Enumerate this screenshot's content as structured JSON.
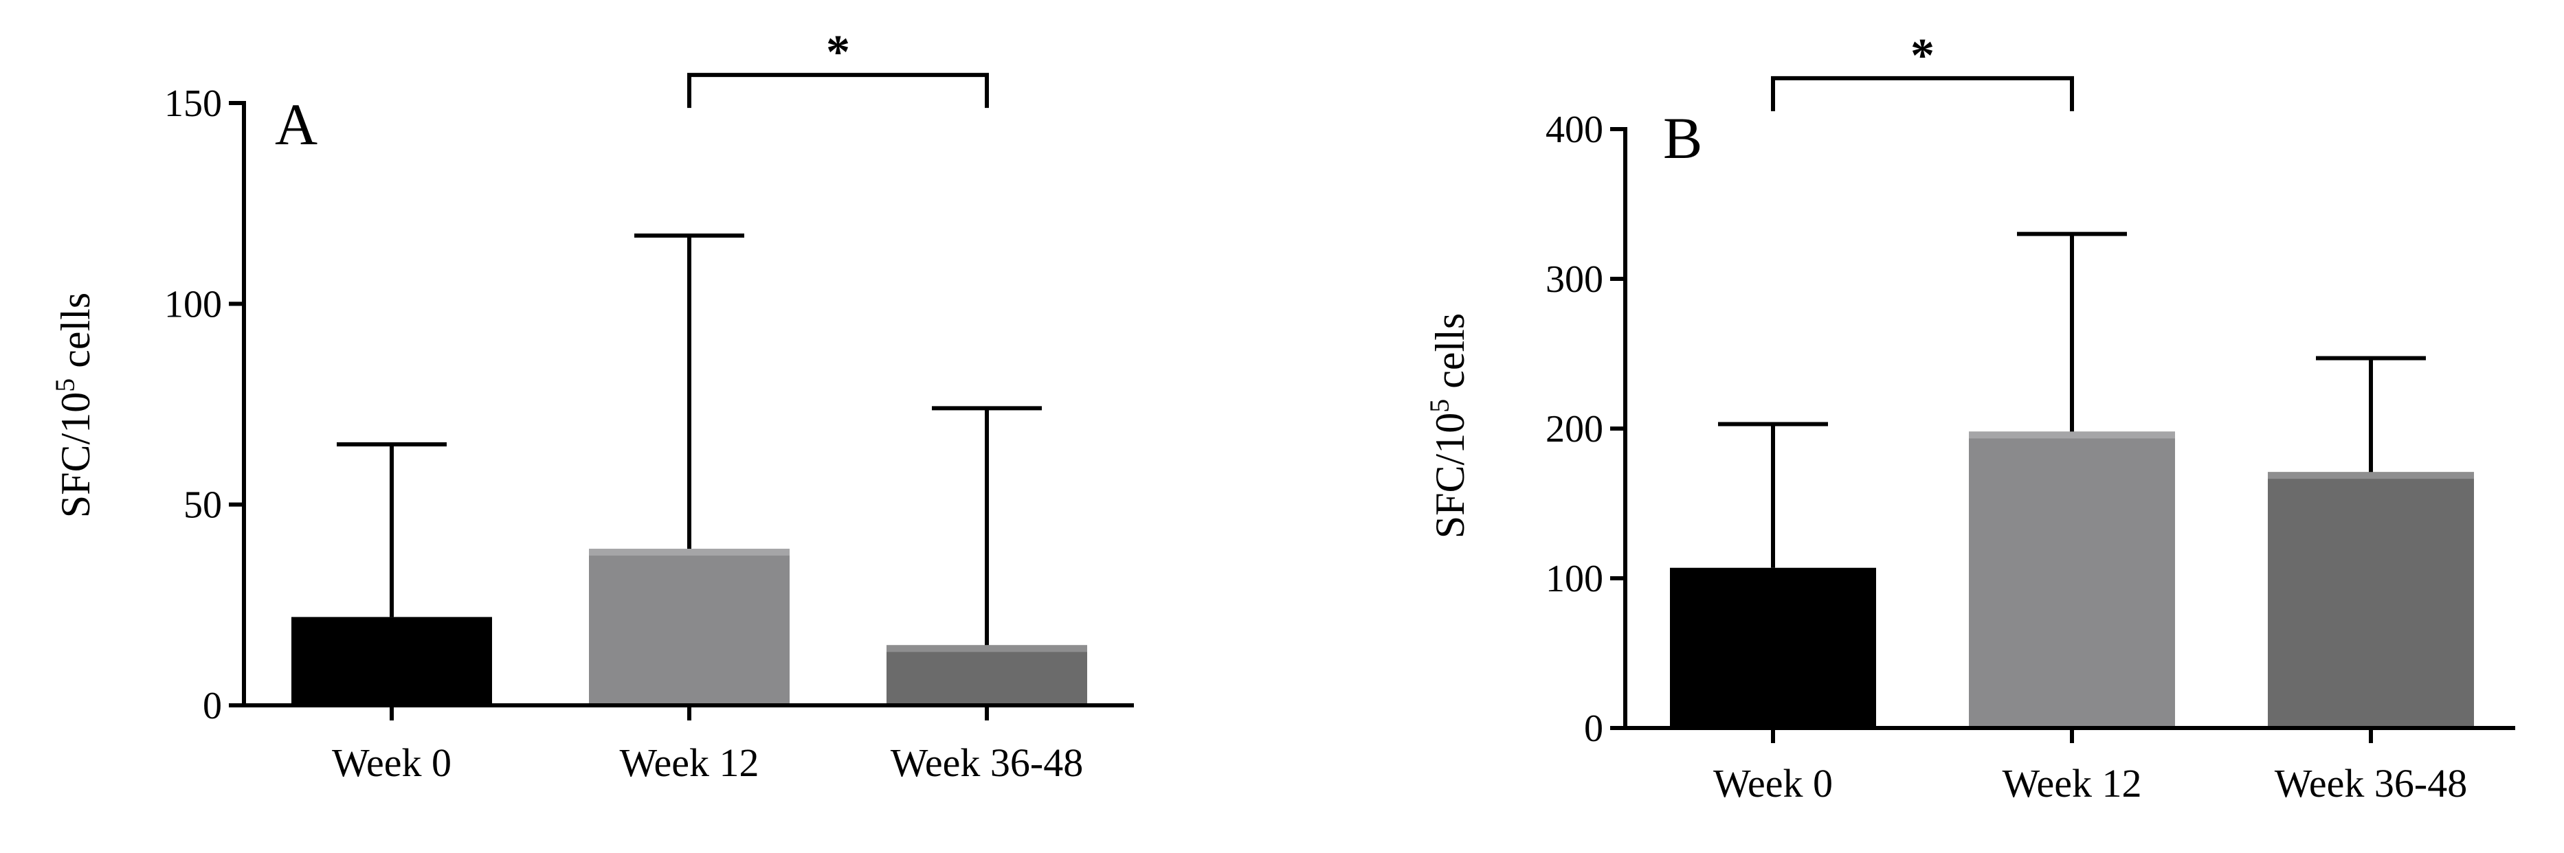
{
  "chart_data": [
    {
      "type": "bar",
      "panel_label": "A",
      "ylabel": "SFC/10",
      "ylabel_sup": "5",
      "ylabel_unit": " cells",
      "ylim": [
        0,
        150
      ],
      "yticks": [
        0,
        50,
        100,
        150
      ],
      "categories": [
        "Week 0",
        "Week 12",
        "Week 36-48"
      ],
      "values": [
        22,
        39,
        15
      ],
      "error_upper": [
        65,
        117,
        74
      ],
      "colors": [
        "#000000",
        "#8a8a8c",
        "#6b6b6b"
      ],
      "significance": [
        {
          "from": 1,
          "to": 2,
          "label": "*",
          "level": 157
        }
      ]
    },
    {
      "type": "bar",
      "panel_label": "B",
      "ylabel": "SFC/10",
      "ylabel_sup": "5",
      "ylabel_unit": " cells",
      "ylim": [
        0,
        400
      ],
      "yticks": [
        0,
        100,
        200,
        300,
        400
      ],
      "categories": [
        "Week 0",
        "Week 12",
        "Week 36-48"
      ],
      "values": [
        107,
        198,
        171
      ],
      "error_upper": [
        203,
        330,
        247
      ],
      "colors": [
        "#000000",
        "#8a8a8c",
        "#6b6b6b"
      ],
      "significance": [
        {
          "from": 0,
          "to": 1,
          "label": "*",
          "level": 434
        }
      ]
    }
  ]
}
